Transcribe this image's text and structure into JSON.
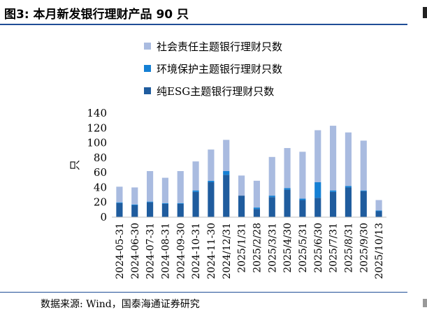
{
  "title": "图3:  本月新发银行理财产品 90 只",
  "source": "数据来源:  Wind，国泰海通证券研究",
  "chart_data": {
    "type": "bar",
    "stacked": true,
    "ylabel": "只",
    "ylim": [
      0,
      140
    ],
    "yticks": [
      0,
      20,
      40,
      60,
      80,
      100,
      120,
      140
    ],
    "legend_position": "top",
    "categories": [
      "2024-05-31",
      "2024-06-30",
      "2024-07-31",
      "2024-08-31",
      "2024-09-30",
      "2024-10-31",
      "2024-11-30",
      "2024/12/31",
      "2025/1/31",
      "2025/2/28",
      "2025/3/31",
      "2025/4/30",
      "2025/5/31",
      "2025/6/30",
      "2025/7/31",
      "2025/8/31",
      "2025/9/30",
      "2025/10/13"
    ],
    "series": [
      {
        "name": "纯ESG主题银行理财只数",
        "color": "#1f5c9e",
        "values": [
          19,
          16,
          20,
          18,
          18,
          34,
          47,
          57,
          29,
          11,
          27,
          37,
          23,
          26,
          34,
          40,
          35,
          8
        ]
      },
      {
        "name": "环境保护主题银行理财只数",
        "color": "#1580d4",
        "values": [
          1,
          1,
          1,
          1,
          1,
          2,
          2,
          5,
          0,
          2,
          2,
          2,
          2,
          21,
          2,
          2,
          1,
          1
        ]
      },
      {
        "name": "社会责任主题银行理财只数",
        "color": "#a9bbe0",
        "values": [
          21,
          23,
          41,
          34,
          43,
          39,
          42,
          42,
          27,
          36,
          52,
          54,
          63,
          70,
          87,
          72,
          67,
          14
        ]
      }
    ]
  }
}
